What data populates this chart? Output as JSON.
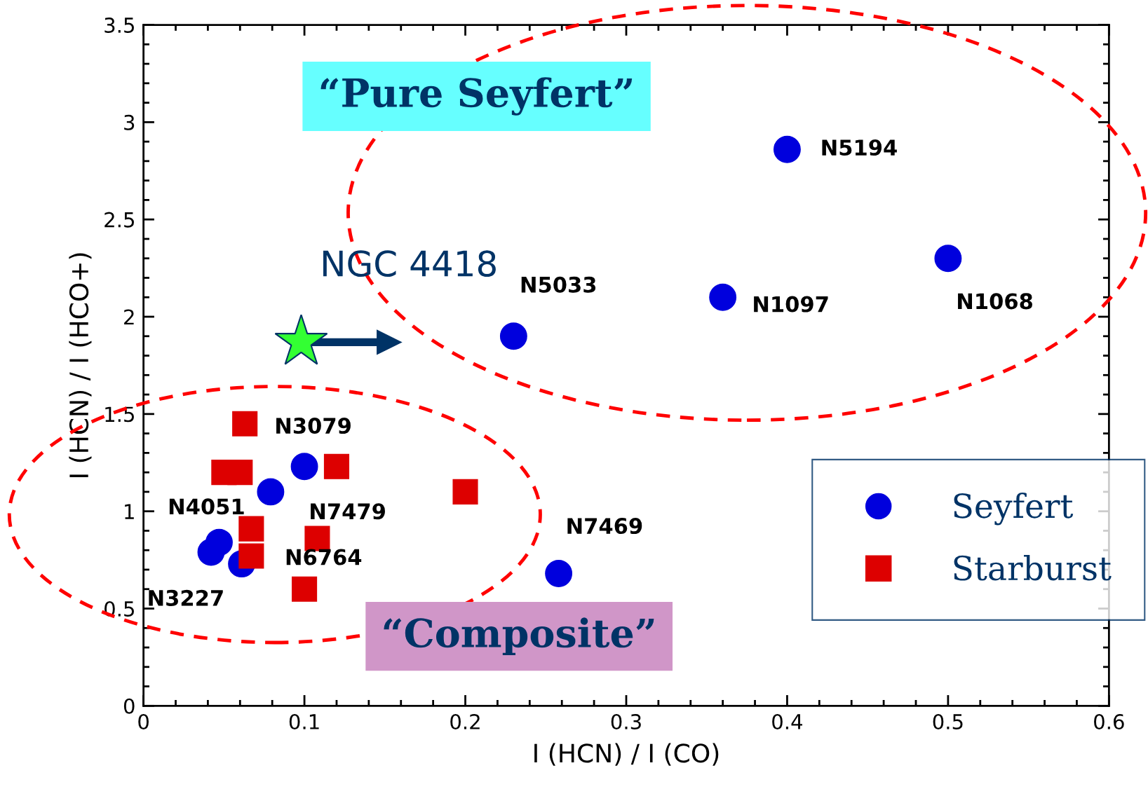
{
  "chart_data": {
    "type": "scatter",
    "xlabel": "I (HCN) / I (CO)",
    "ylabel": "I (HCN) / I (HCO+)",
    "xlim": [
      0,
      0.6
    ],
    "xticks": [
      0,
      0.1,
      0.2,
      0.3,
      0.4,
      0.5,
      0.6
    ],
    "ylim": [
      0,
      3.5
    ],
    "yticks": [
      0,
      0.5,
      1,
      1.5,
      2,
      2.5,
      3,
      3.5
    ],
    "grid": false,
    "legend": "lower right",
    "series": [
      {
        "name": "Seyfert",
        "color": "#0000dd",
        "marker": "circle",
        "x": [
          0.4,
          0.23,
          0.36,
          0.5,
          0.1,
          0.079,
          0.047,
          0.042,
          0.061,
          0.258
        ],
        "values": [
          2.86,
          1.9,
          2.1,
          2.3,
          1.23,
          1.1,
          0.84,
          0.79,
          0.73,
          0.68
        ]
      },
      {
        "name": "Starburst",
        "color": "#dd0000",
        "marker": "square",
        "x": [
          0.063,
          0.05,
          0.06,
          0.12,
          0.2,
          0.067,
          0.108,
          0.067,
          0.1
        ],
        "values": [
          1.45,
          1.2,
          1.2,
          1.23,
          1.1,
          0.91,
          0.86,
          0.77,
          0.6
        ]
      },
      {
        "color": "#33ff33",
        "marker": "star",
        "x": [
          0.098
        ],
        "values": [
          1.87
        ]
      }
    ],
    "annotations": [
      "“Pure Seyfert”",
      "“Composite”",
      "NGC 4418",
      {
        "text": "N5194",
        "x": 0.4,
        "y": 2.86
      },
      {
        "text": "N5033",
        "x": 0.23,
        "y": 1.9
      },
      {
        "text": "N1097",
        "x": 0.36,
        "y": 2.1
      },
      {
        "text": "N1068",
        "x": 0.5,
        "y": 2.3
      },
      {
        "text": "N3079",
        "x": 0.1,
        "y": 1.23
      },
      {
        "text": "N7479",
        "x": 0.079,
        "y": 1.1
      },
      {
        "text": "N4051",
        "x": 0.047,
        "y": 0.84
      },
      {
        "text": "N3227",
        "x": 0.042,
        "y": 0.79
      },
      {
        "text": "N6764",
        "x": 0.061,
        "y": 0.73
      },
      {
        "text": "N7469",
        "x": 0.258,
        "y": 0.68
      }
    ]
  }
}
